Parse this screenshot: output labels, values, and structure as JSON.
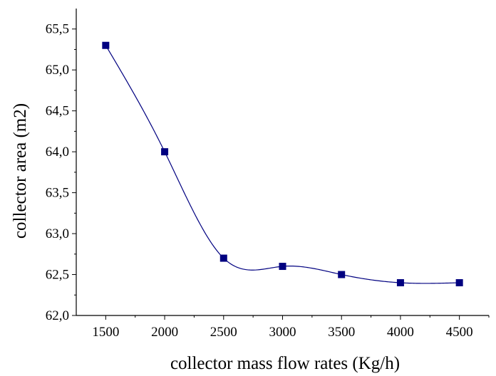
{
  "chart_data": {
    "type": "line",
    "title": "",
    "xlabel": "collector mass flow rates (Kg/h)",
    "ylabel": "collector area (m2)",
    "xlim": [
      1250,
      4750
    ],
    "ylim": [
      62.0,
      65.75
    ],
    "x_ticks": [
      1500,
      2000,
      2500,
      3000,
      3500,
      4000,
      4500
    ],
    "x_tick_labels": [
      "1500",
      "2000",
      "2500",
      "3000",
      "3500",
      "4000",
      "4500"
    ],
    "y_ticks": [
      62.0,
      62.5,
      63.0,
      63.5,
      64.0,
      64.5,
      65.0,
      65.5
    ],
    "y_tick_labels": [
      "62,0",
      "62,5",
      "63,0",
      "63,5",
      "64,0",
      "64,5",
      "65,0",
      "65,5"
    ],
    "grid": false,
    "legend": "none",
    "series": [
      {
        "x": [
          1500,
          2000,
          2500,
          3000,
          3500,
          4000,
          4500
        ],
        "y": [
          65.3,
          64.0,
          62.7,
          62.6,
          62.5,
          62.4,
          62.4
        ],
        "color": "#000080",
        "marker": "square",
        "line": "smooth spline"
      }
    ]
  }
}
